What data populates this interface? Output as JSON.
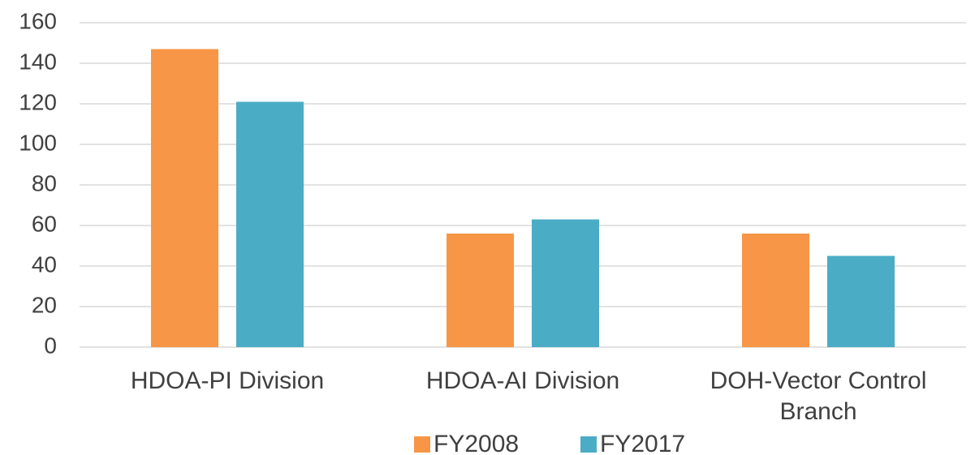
{
  "chart_data": {
    "type": "bar",
    "categories": [
      "HDOA-PI Division",
      "HDOA-AI Division",
      "DOH-Vector Control Branch"
    ],
    "series": [
      {
        "name": "FY2008",
        "color": "#f79646",
        "values": [
          147,
          56,
          56
        ]
      },
      {
        "name": "FY2017",
        "color": "#4bacc6",
        "values": [
          121,
          63,
          45
        ]
      }
    ],
    "ylim": [
      0,
      160
    ],
    "yticks": [
      0,
      20,
      40,
      60,
      80,
      100,
      120,
      140,
      160
    ],
    "grid": true,
    "legend": "bottom"
  }
}
